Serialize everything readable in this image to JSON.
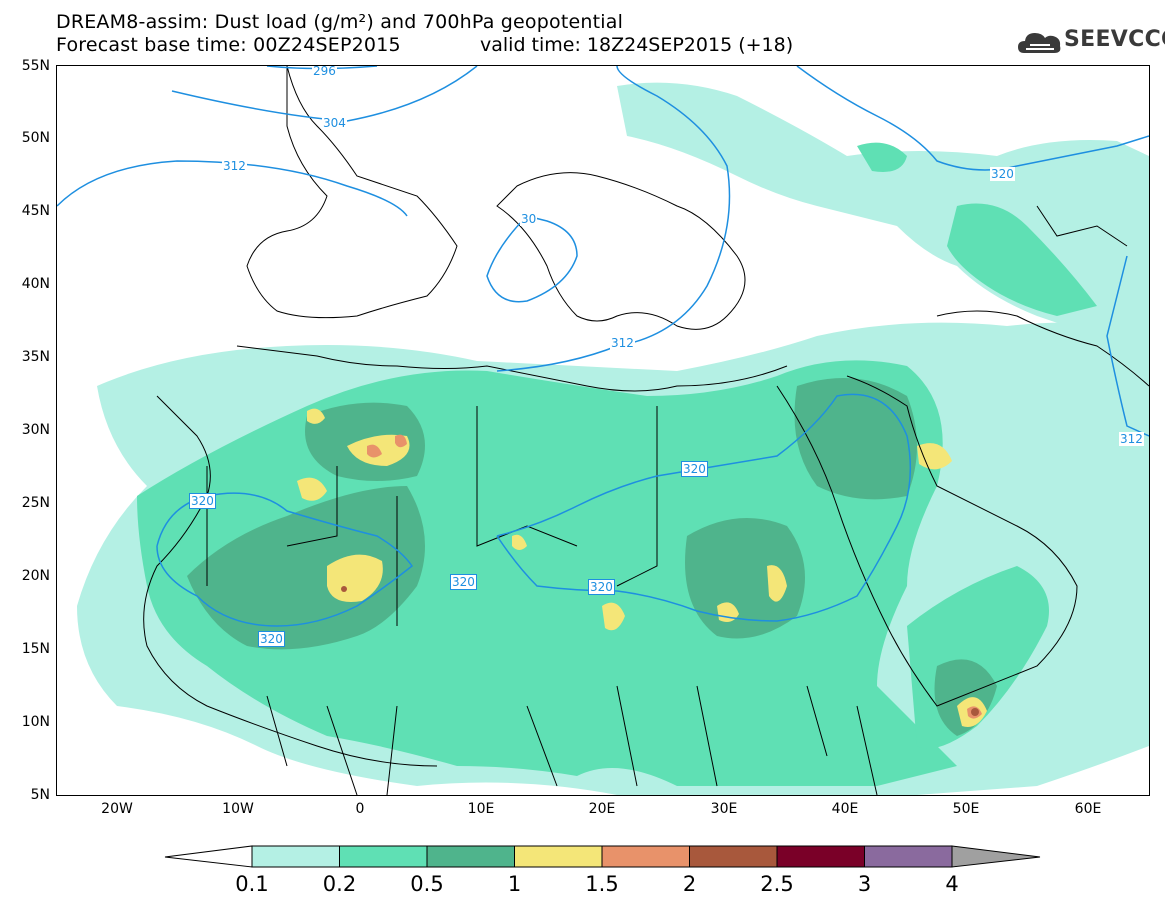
{
  "header": {
    "title_line1": "DREAM8-assim: Dust load (g/m²) and 700hPa geopotential",
    "title_line2": "Forecast base time: 00Z24SEP2015",
    "valid_time": "valid time: 18Z24SEP2015 (+18)",
    "brand": "SEEVCCC"
  },
  "map": {
    "projection": "lat-lon",
    "lon_range": [
      -25,
      65
    ],
    "lat_range": [
      5,
      55
    ],
    "lat_labels": [
      "55N",
      "50N",
      "45N",
      "40N",
      "35N",
      "30N",
      "25N",
      "20N",
      "15N",
      "10N",
      "5N"
    ],
    "lon_labels": [
      "20W",
      "10W",
      "0",
      "10E",
      "20E",
      "30E",
      "40E",
      "50E",
      "60E"
    ],
    "contour_labels": [
      "296",
      "304",
      "312",
      "30",
      "312",
      "320",
      "320",
      "320",
      "320",
      "320",
      "320",
      "312"
    ],
    "colors": {
      "contour_line": "#1e8fe0",
      "border": "#000000",
      "dust_0_1": "#b4f0e4",
      "dust_0_2": "#5fe0b4",
      "dust_0_5": "#4fb48c",
      "dust_1": "#f4e678",
      "dust_1_5": "#e8926a",
      "dust_2": "#a8583c",
      "dust_2_5": "#7a0028",
      "dust_3": "#8a6a9e"
    }
  },
  "legend": {
    "labels": [
      "0.1",
      "0.2",
      "0.5",
      "1",
      "1.5",
      "2",
      "2.5",
      "3",
      "4"
    ],
    "colors": [
      "#b4f0e4",
      "#5fe0b4",
      "#4fb48c",
      "#f4e678",
      "#e8926a",
      "#a8583c",
      "#7a0028",
      "#8a6a9e"
    ],
    "under_color": "#ffffff",
    "over_color": "#a0a0a0"
  }
}
